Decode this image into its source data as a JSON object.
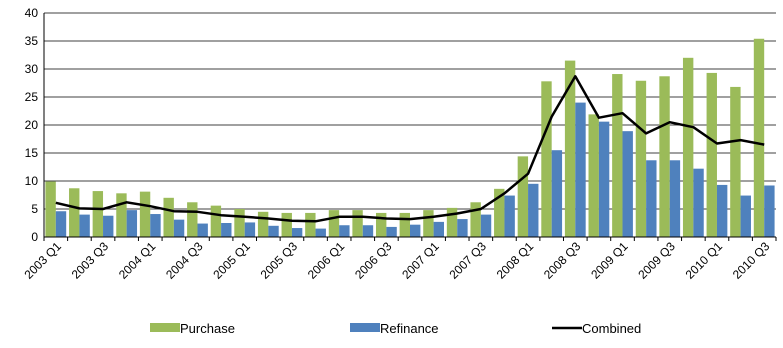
{
  "chart_data": {
    "type": "bar",
    "categories": [
      "2003 Q1",
      "2003 Q2",
      "2003 Q3",
      "2003 Q4",
      "2004 Q1",
      "2004 Q2",
      "2004 Q3",
      "2004 Q4",
      "2005 Q1",
      "2005 Q2",
      "2005 Q3",
      "2005 Q4",
      "2006 Q1",
      "2006 Q2",
      "2006 Q3",
      "2006 Q4",
      "2007 Q1",
      "2007 Q2",
      "2007 Q3",
      "2007 Q4",
      "2008 Q1",
      "2008 Q2",
      "2008 Q3",
      "2008 Q4",
      "2009 Q1",
      "2009 Q2",
      "2009 Q3",
      "2009 Q4",
      "2010 Q1",
      "2010 Q2",
      "2010 Q3"
    ],
    "shown_tick_labels": [
      "2003 Q1",
      "2003 Q3",
      "2004 Q1",
      "2004 Q3",
      "2005 Q1",
      "2005 Q3",
      "2006 Q1",
      "2006 Q3",
      "2007 Q1",
      "2007 Q3",
      "2008 Q1",
      "2008 Q3",
      "2009 Q1",
      "2009 Q3",
      "2010 Q1",
      "2010 Q3"
    ],
    "series": [
      {
        "name": "Purchase",
        "type": "bar",
        "color": "#9BBB59",
        "values": [
          9.9,
          8.7,
          8.2,
          7.8,
          8.1,
          7.0,
          6.2,
          5.6,
          5.0,
          4.5,
          4.3,
          4.3,
          4.8,
          4.8,
          4.3,
          4.3,
          4.8,
          5.2,
          6.2,
          8.6,
          14.4,
          27.8,
          31.5,
          21.9,
          29.1,
          27.9,
          28.7,
          32.0,
          29.3,
          26.8,
          35.4
        ]
      },
      {
        "name": "Refinance",
        "type": "bar",
        "color": "#4F81BD",
        "values": [
          4.6,
          4.0,
          3.8,
          4.8,
          4.1,
          3.1,
          2.4,
          2.5,
          2.6,
          2.0,
          1.6,
          1.5,
          2.1,
          2.1,
          1.8,
          2.2,
          2.7,
          3.2,
          4.0,
          7.4,
          9.5,
          15.5,
          24.0,
          20.6,
          18.9,
          13.7,
          13.7,
          12.2,
          9.3,
          7.4,
          9.2
        ]
      },
      {
        "name": "Combined",
        "type": "line",
        "color": "#000000",
        "values": [
          6.1,
          5.1,
          5.0,
          6.2,
          5.5,
          4.6,
          4.5,
          3.9,
          3.6,
          3.3,
          2.9,
          2.8,
          3.6,
          3.6,
          3.3,
          3.2,
          3.6,
          4.2,
          5.0,
          7.8,
          11.3,
          21.5,
          28.7,
          21.3,
          22.1,
          18.5,
          20.5,
          19.6,
          16.7,
          17.3,
          16.5
        ]
      }
    ],
    "ylim": [
      0,
      40
    ],
    "yticks": [
      0,
      5,
      10,
      15,
      20,
      25,
      30,
      35,
      40
    ],
    "grid": true,
    "legend_position": "bottom",
    "title": "",
    "xlabel": "",
    "ylabel": ""
  }
}
